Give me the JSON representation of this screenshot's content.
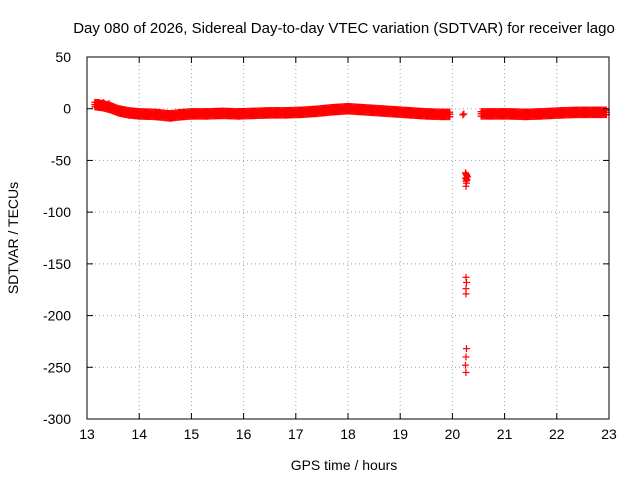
{
  "chart_data": {
    "type": "scatter",
    "title": "Day 080 of 2026, Sidereal Day-to-day VTEC variation (SDTVAR) for receiver lago",
    "xlabel": "GPS time / hours",
    "ylabel": "SDTVAR / TECUs",
    "xlim": [
      13,
      23
    ],
    "ylim": [
      -300,
      50
    ],
    "xticks": [
      13,
      14,
      15,
      16,
      17,
      18,
      19,
      20,
      21,
      22,
      23
    ],
    "yticks": [
      50,
      0,
      -50,
      -100,
      -150,
      -200,
      -250,
      -300
    ],
    "grid": true,
    "marker": "+",
    "color": "#ff0000",
    "series": [
      {
        "name": "SDTVAR",
        "trend": [
          [
            13.15,
            4
          ],
          [
            13.3,
            3
          ],
          [
            13.45,
            1
          ],
          [
            13.6,
            -2
          ],
          [
            13.8,
            -4
          ],
          [
            14.0,
            -5
          ],
          [
            14.3,
            -5.5
          ],
          [
            14.6,
            -7
          ],
          [
            14.75,
            -6
          ],
          [
            15.0,
            -5
          ],
          [
            15.3,
            -5
          ],
          [
            15.6,
            -4.5
          ],
          [
            15.9,
            -5
          ],
          [
            16.2,
            -4.5
          ],
          [
            16.5,
            -4
          ],
          [
            16.8,
            -4
          ],
          [
            17.1,
            -3.5
          ],
          [
            17.4,
            -2.5
          ],
          [
            17.7,
            -1
          ],
          [
            18.0,
            0
          ],
          [
            18.3,
            -1
          ],
          [
            18.6,
            -2
          ],
          [
            18.9,
            -3
          ],
          [
            19.2,
            -4
          ],
          [
            19.5,
            -5
          ],
          [
            19.8,
            -5.5
          ],
          [
            19.95,
            -5.5
          ]
        ],
        "trend2": [
          [
            20.55,
            -5
          ],
          [
            20.8,
            -5
          ],
          [
            21.1,
            -5
          ],
          [
            21.4,
            -5.5
          ],
          [
            21.7,
            -5
          ],
          [
            21.9,
            -4.5
          ],
          [
            22.1,
            -4
          ],
          [
            22.4,
            -3.5
          ],
          [
            22.7,
            -3.5
          ],
          [
            22.95,
            -3.5
          ]
        ],
        "isolated": [
          [
            13.22,
            6
          ],
          [
            13.32,
            6
          ],
          [
            13.42,
            5
          ],
          [
            20.2,
            -6
          ],
          [
            20.22,
            -5
          ],
          [
            20.25,
            -62
          ],
          [
            20.26,
            -63
          ],
          [
            20.27,
            -64
          ],
          [
            20.28,
            -65
          ],
          [
            20.29,
            -66
          ],
          [
            20.25,
            -67
          ],
          [
            20.27,
            -68
          ],
          [
            20.28,
            -69
          ],
          [
            20.26,
            -70
          ],
          [
            20.27,
            -72
          ],
          [
            20.26,
            -75
          ],
          [
            20.26,
            -163
          ],
          [
            20.27,
            -168
          ],
          [
            20.26,
            -174
          ],
          [
            20.26,
            -179
          ],
          [
            20.27,
            -232
          ],
          [
            20.26,
            -240
          ],
          [
            20.25,
            -248
          ],
          [
            20.26,
            -255
          ]
        ]
      }
    ]
  }
}
